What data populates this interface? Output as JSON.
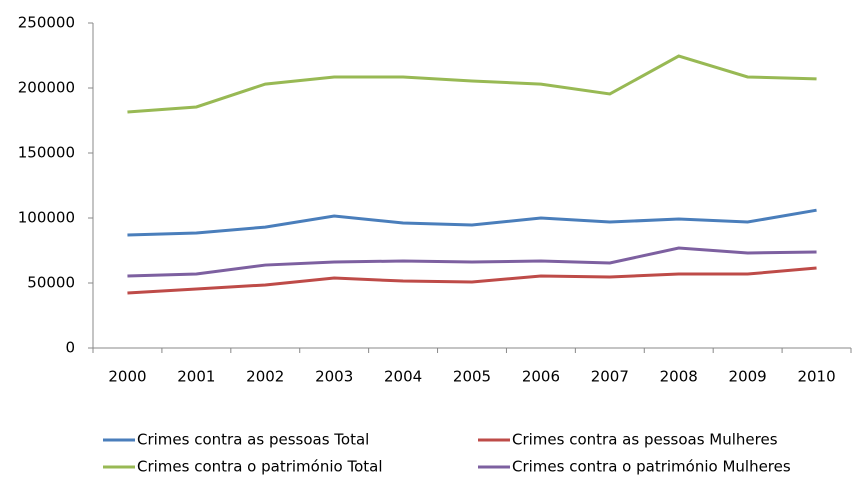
{
  "chart_data": {
    "type": "line",
    "categories": [
      "2000",
      "2001",
      "2002",
      "2003",
      "2004",
      "2005",
      "2006",
      "2007",
      "2008",
      "2009",
      "2010"
    ],
    "series": [
      {
        "name": "Crimes contra as pessoas Total",
        "color": "#4a7ebb",
        "values": [
          86900,
          88500,
          93000,
          101500,
          96200,
          94600,
          100000,
          96900,
          99200,
          96900,
          106000
        ]
      },
      {
        "name": "Crimes contra as pessoas Mulheres",
        "color": "#be4b48",
        "values": [
          42300,
          45400,
          48500,
          53800,
          51500,
          50800,
          55400,
          54600,
          56900,
          56900,
          61500
        ]
      },
      {
        "name": "Crimes contra o património Total",
        "color": "#98b954",
        "values": [
          181500,
          185400,
          203000,
          208500,
          208500,
          205400,
          203000,
          195400,
          224600,
          208500,
          207000
        ]
      },
      {
        "name": "Crimes contra o património Mulheres",
        "color": "#7d60a0",
        "values": [
          55400,
          56900,
          63800,
          66200,
          66900,
          66200,
          66900,
          65400,
          76900,
          73100,
          73800
        ]
      }
    ],
    "ylim": [
      0,
      250000
    ],
    "yticks": [
      0,
      50000,
      100000,
      150000,
      200000,
      250000
    ],
    "grid": false
  }
}
